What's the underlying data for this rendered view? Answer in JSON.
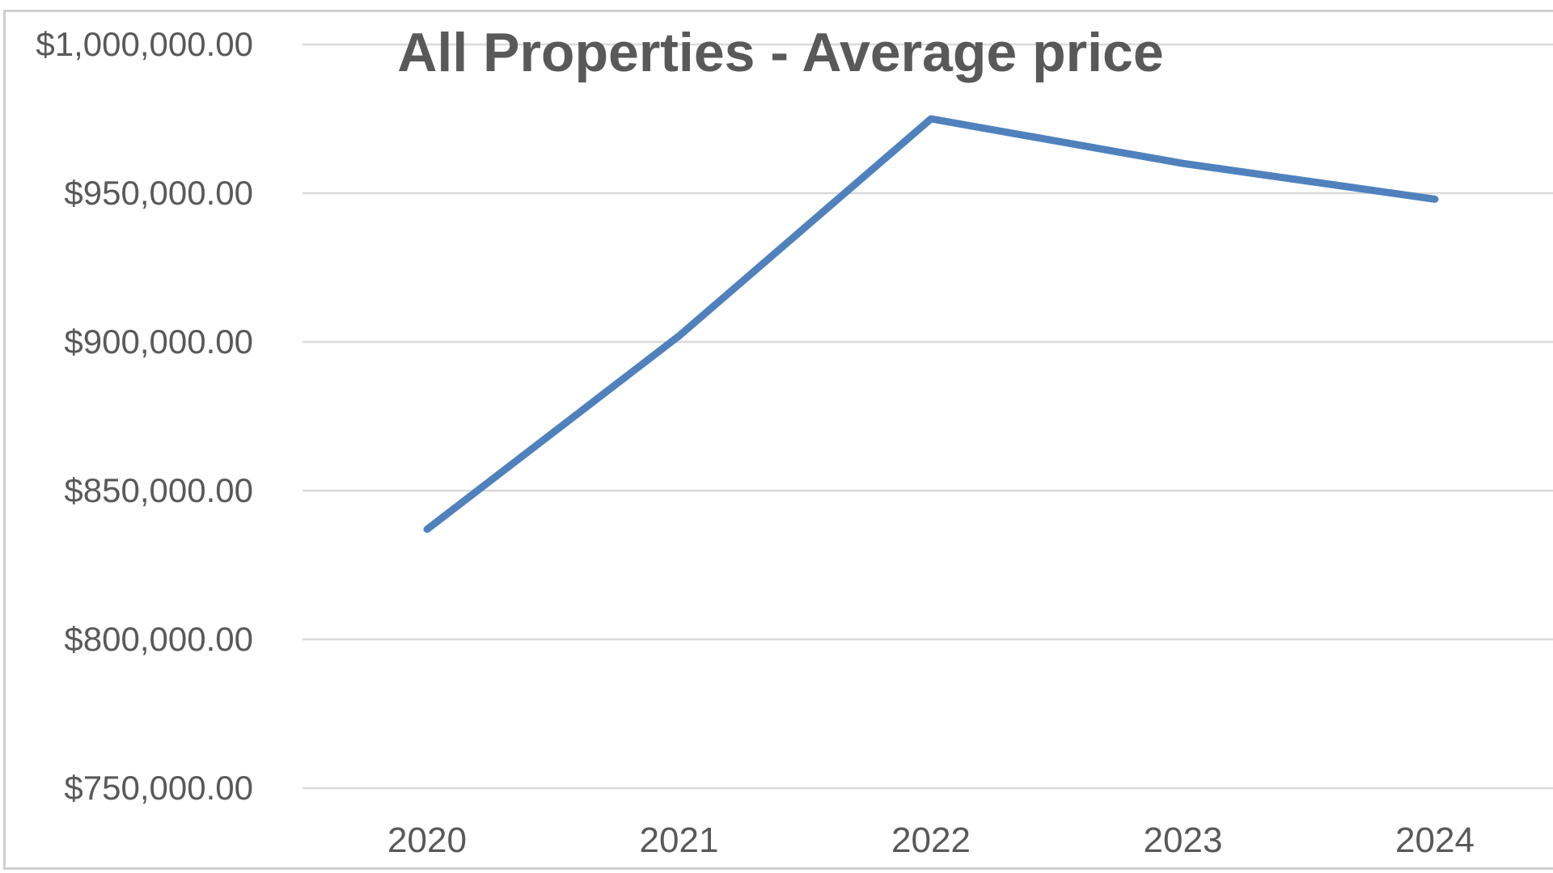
{
  "chart_data": {
    "type": "line",
    "title": "All Properties - Average price",
    "xlabel": "",
    "ylabel": "",
    "categories": [
      "2020",
      "2021",
      "2022",
      "2023",
      "2024"
    ],
    "series": [
      {
        "values": [
          837000,
          902000,
          975000,
          960000,
          948000
        ],
        "color": "#4f81bd"
      }
    ],
    "ylim": [
      750000,
      1000000
    ],
    "y_ticks": [
      1000000,
      950000,
      900000,
      850000,
      800000,
      750000
    ],
    "y_tick_labels": [
      "$1,000,000.00",
      "$950,000.00",
      "$900,000.00",
      "$850,000.00",
      "$800,000.00",
      "$750,000.00"
    ],
    "grid": true,
    "legend": "none"
  }
}
